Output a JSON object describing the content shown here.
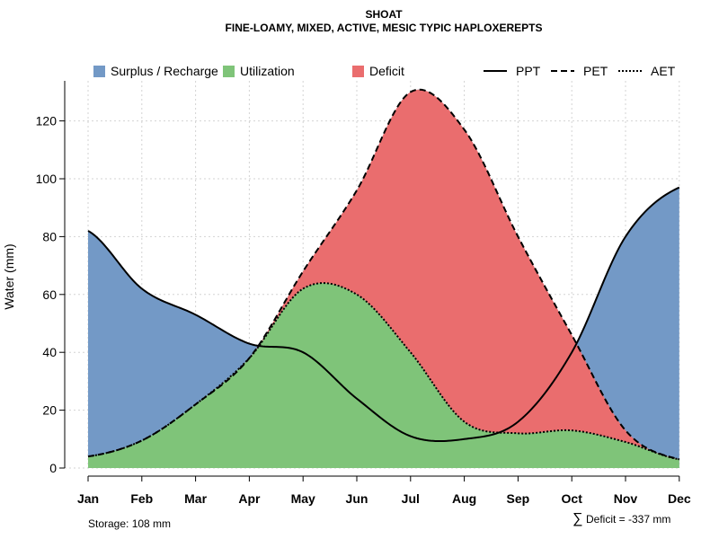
{
  "chart_data": {
    "type": "area",
    "title": "SHOAT",
    "subtitle": "FINE-LOAMY, MIXED, ACTIVE, MESIC TYPIC HAPLOXEREPTS",
    "ylabel": "Water (mm)",
    "xlabel": "",
    "ylim": [
      0,
      133
    ],
    "yticks": [
      0,
      20,
      40,
      60,
      80,
      100,
      120
    ],
    "grid": true,
    "categories": [
      "Jan",
      "Feb",
      "Mar",
      "Apr",
      "May",
      "Jun",
      "Jul",
      "Aug",
      "Sep",
      "Oct",
      "Nov",
      "Dec"
    ],
    "series": [
      {
        "name": "PPT",
        "line_style": "solid",
        "values": [
          82,
          62,
          53,
          43,
          40,
          24,
          11,
          10,
          16,
          40,
          80,
          97
        ]
      },
      {
        "name": "PET",
        "line_style": "dashed",
        "values": [
          4,
          9.5,
          22,
          38,
          68,
          96,
          130,
          117,
          80,
          46,
          13,
          3
        ]
      },
      {
        "name": "AET",
        "line_style": "dotted",
        "values": [
          4,
          9.5,
          22,
          38,
          62,
          60,
          40,
          16,
          12,
          13,
          9,
          3
        ]
      }
    ],
    "legend": {
      "position": "top",
      "fill_entries": [
        {
          "label": "Surplus / Recharge",
          "color": "#7399C6"
        },
        {
          "label": "Utilization",
          "color": "#7FC479"
        },
        {
          "label": "Deficit",
          "color": "#EA6D6E"
        }
      ],
      "line_entries": [
        {
          "label": "PPT",
          "line_style": "solid"
        },
        {
          "label": "PET",
          "line_style": "dashed"
        },
        {
          "label": "AET",
          "line_style": "dotted"
        }
      ]
    },
    "annotations": {
      "storage": "Storage: 108 mm",
      "deficit_symbol": "∑",
      "deficit": "Deficit = -337 mm"
    }
  }
}
